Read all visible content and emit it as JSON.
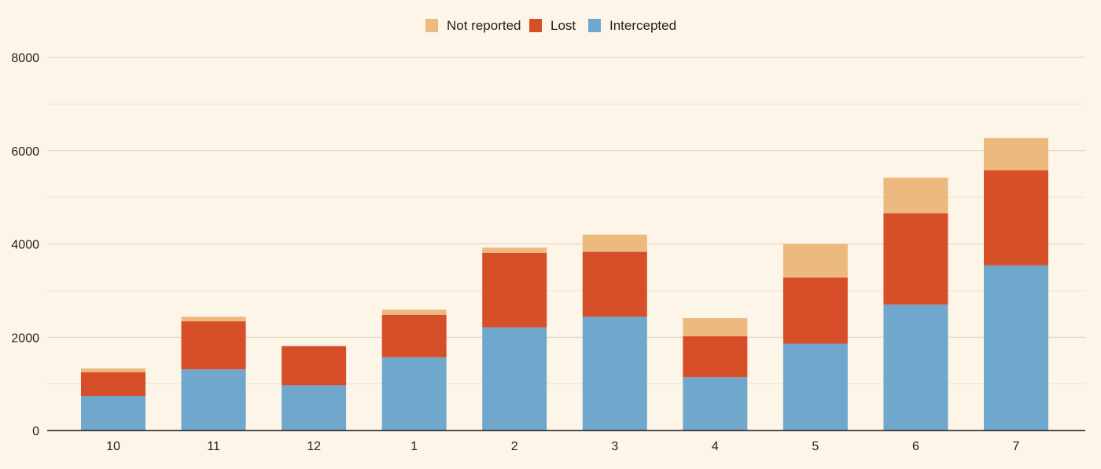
{
  "chart_data": {
    "type": "bar",
    "stacked": true,
    "title": "",
    "xlabel": "",
    "ylabel": "",
    "ylim": [
      0,
      8000
    ],
    "yticks": [
      0,
      2000,
      4000,
      6000,
      8000
    ],
    "grid": true,
    "legend_position": "top-center",
    "categories": [
      "10",
      "11",
      "12",
      "1",
      "2",
      "3",
      "4",
      "5",
      "6",
      "7"
    ],
    "series": [
      {
        "name": "Intercepted",
        "color": "#6fa8cc",
        "values": [
          740,
          1310,
          970,
          1570,
          2210,
          2440,
          1140,
          1860,
          2700,
          3540
        ]
      },
      {
        "name": "Lost",
        "color": "#d64f28",
        "values": [
          510,
          1030,
          840,
          910,
          1600,
          1390,
          880,
          1420,
          1960,
          2040
        ]
      },
      {
        "name": "Not reported",
        "color": "#ecb97e",
        "values": [
          80,
          100,
          0,
          110,
          110,
          370,
          390,
          720,
          760,
          690
        ]
      }
    ],
    "legend_order": [
      "Not reported",
      "Lost",
      "Intercepted"
    ]
  }
}
